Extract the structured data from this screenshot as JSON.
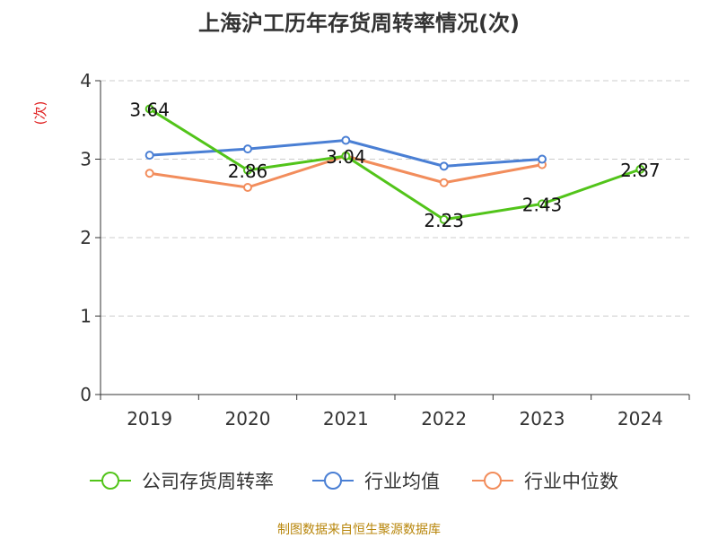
{
  "chart_data": {
    "type": "line",
    "title": "上海沪工历年存货周转率情况(次)",
    "ylabel": "(次)",
    "xlabel": "",
    "categories": [
      "2019",
      "2020",
      "2021",
      "2022",
      "2023",
      "2024"
    ],
    "ylim": [
      0,
      4
    ],
    "yticks": [
      0,
      1,
      2,
      3,
      4
    ],
    "grid": "horizontal-dashed",
    "legend_position": "bottom",
    "series": [
      {
        "name": "公司存货周转率",
        "color": "#52c41a",
        "values": [
          3.64,
          2.86,
          3.04,
          2.23,
          2.43,
          2.87
        ],
        "show_labels": true
      },
      {
        "name": "行业均值",
        "color": "#4a7fd4",
        "values": [
          3.05,
          3.13,
          3.24,
          2.91,
          3.0,
          null
        ],
        "show_labels": false
      },
      {
        "name": "行业中位数",
        "color": "#f28d5c",
        "values": [
          2.82,
          2.64,
          3.04,
          2.7,
          2.93,
          null
        ],
        "show_labels": false
      }
    ],
    "data_labels": [
      "3.64",
      "2.86",
      "3.04",
      "2.23",
      "2.43",
      "2.87"
    ],
    "ylabel_color": "#e02020",
    "axis_color": "#333333",
    "grid_color": "#cccccc"
  },
  "footer": {
    "source": "制图数据来自恒生聚源数据库"
  }
}
